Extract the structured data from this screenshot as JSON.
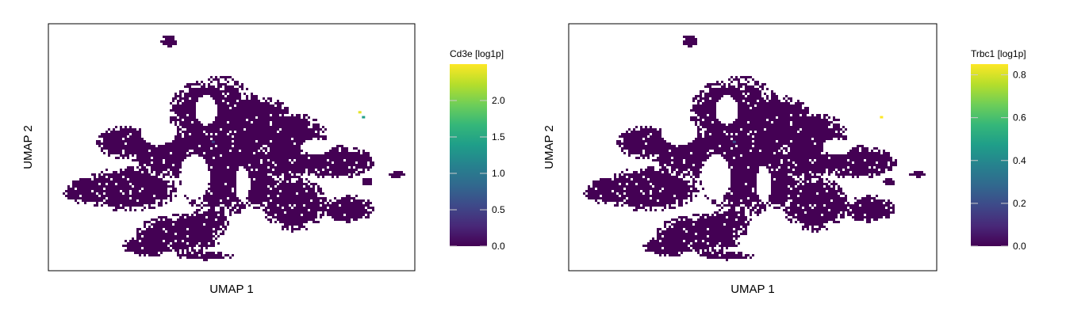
{
  "chart_data": [
    {
      "type": "scatter",
      "title": "",
      "xlabel": "UMAP 1",
      "ylabel": "UMAP 2",
      "colorbar": {
        "label": "Cd3e [log1p]",
        "range": [
          0.0,
          2.5
        ],
        "ticks": [
          0.0,
          0.5,
          1.0,
          1.5,
          2.0
        ],
        "tick_labels": [
          "0.0",
          "0.5",
          "1.0",
          "1.5",
          "2.0"
        ],
        "colormap": "viridis"
      },
      "baseline_value": 0.0,
      "highlighted_points": [
        {
          "x": 0.86,
          "y": 0.38,
          "value": 1.4
        },
        {
          "x": 0.85,
          "y": 0.36,
          "value": 2.4
        },
        {
          "x": 0.45,
          "y": 0.48,
          "value": 0.5
        }
      ]
    },
    {
      "type": "scatter",
      "title": "",
      "xlabel": "UMAP 1",
      "ylabel": "UMAP 2",
      "colorbar": {
        "label": "Trbc1 [log1p]",
        "range": [
          0.0,
          0.85
        ],
        "ticks": [
          0.0,
          0.2,
          0.4,
          0.6,
          0.8
        ],
        "tick_labels": [
          "0.0",
          "0.2",
          "0.4",
          "0.6",
          "0.8"
        ],
        "colormap": "viridis"
      },
      "baseline_value": 0.0,
      "highlighted_points": [
        {
          "x": 0.85,
          "y": 0.38,
          "value": 0.85
        },
        {
          "x": 0.45,
          "y": 0.48,
          "value": 0.2
        }
      ]
    }
  ],
  "colors": {
    "viridis": [
      "#440154",
      "#482878",
      "#3e4989",
      "#31688e",
      "#26828e",
      "#1f9e89",
      "#35b779",
      "#6ece58",
      "#b5de2b",
      "#fde725"
    ]
  }
}
